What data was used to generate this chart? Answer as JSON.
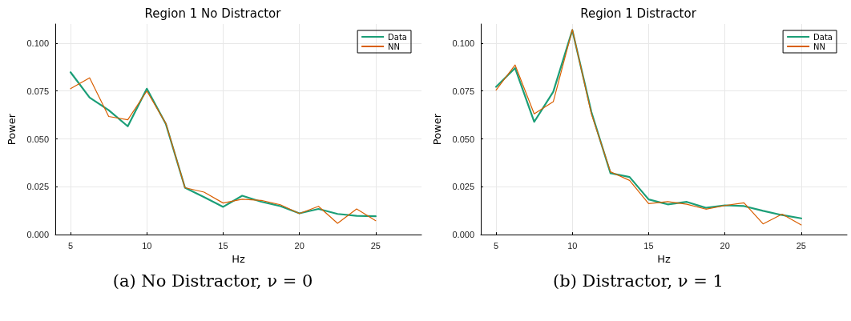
{
  "chart_data": [
    {
      "type": "line",
      "title": "Region 1 No Distractor",
      "xlabel": "Hz",
      "ylabel": "Power",
      "x": [
        5,
        6.25,
        7.5,
        8.75,
        10,
        11.25,
        12.5,
        13.75,
        15,
        16.25,
        17.5,
        18.75,
        20,
        21.25,
        22.5,
        23.75,
        25
      ],
      "series": [
        {
          "name": "Data",
          "color": "#1b9e77",
          "values": [
            0.0848,
            0.0716,
            0.065,
            0.0566,
            0.0762,
            0.0577,
            0.0245,
            0.0196,
            0.0145,
            0.0203,
            0.0172,
            0.0149,
            0.0111,
            0.0134,
            0.0108,
            0.0098,
            0.0096
          ]
        },
        {
          "name": "NN",
          "color": "#d95f02",
          "values": [
            0.0762,
            0.0819,
            0.0617,
            0.06,
            0.075,
            0.058,
            0.0245,
            0.0222,
            0.0165,
            0.0185,
            0.0179,
            0.0156,
            0.011,
            0.0148,
            0.0059,
            0.0134,
            0.0073
          ]
        }
      ],
      "xlim": [
        4,
        28
      ],
      "xticks": [
        5,
        10,
        15,
        20,
        25
      ],
      "ylim": [
        0,
        0.11
      ],
      "yticks": [
        {
          "value": 0,
          "label": "0.000"
        },
        {
          "value": 0.025,
          "label": "0.025"
        },
        {
          "value": 0.05,
          "label": "0.050"
        },
        {
          "value": 0.075,
          "label": "0.075"
        },
        {
          "value": 0.1,
          "label": "0.100"
        }
      ],
      "grid": true,
      "legend": "top right",
      "marker": "none",
      "line_style": "solid",
      "annotations": [
        "(a) No Distractor, ν = 0"
      ]
    },
    {
      "type": "line",
      "title": "Region 1 Distractor",
      "xlabel": "Hz",
      "ylabel": "Power",
      "x": [
        5,
        6.25,
        7.5,
        8.75,
        10,
        11.25,
        12.5,
        13.75,
        15,
        16.25,
        17.5,
        18.75,
        20,
        21.25,
        22.5,
        23.75,
        25
      ],
      "series": [
        {
          "name": "Data",
          "color": "#1b9e77",
          "values": [
            0.0772,
            0.087,
            0.0589,
            0.0746,
            0.1068,
            0.064,
            0.0321,
            0.0301,
            0.0184,
            0.0158,
            0.0171,
            0.014,
            0.0153,
            0.0149,
            0.0124,
            0.0102,
            0.0085
          ]
        },
        {
          "name": "NN",
          "color": "#d95f02",
          "values": [
            0.0755,
            0.0886,
            0.0631,
            0.0694,
            0.1071,
            0.063,
            0.0328,
            0.0283,
            0.0162,
            0.0172,
            0.0159,
            0.0133,
            0.0152,
            0.0166,
            0.0056,
            0.0107,
            0.0051
          ]
        }
      ],
      "xlim": [
        4,
        28
      ],
      "xticks": [
        5,
        10,
        15,
        20,
        25
      ],
      "ylim": [
        0,
        0.11
      ],
      "yticks": [
        {
          "value": 0,
          "label": "0.000"
        },
        {
          "value": 0.025,
          "label": "0.025"
        },
        {
          "value": 0.05,
          "label": "0.050"
        },
        {
          "value": 0.075,
          "label": "0.075"
        },
        {
          "value": 0.1,
          "label": "0.100"
        }
      ],
      "grid": true,
      "legend": "top right",
      "marker": "none",
      "line_style": "solid",
      "annotations": [
        "(b) Distractor, ν = 1"
      ]
    }
  ]
}
